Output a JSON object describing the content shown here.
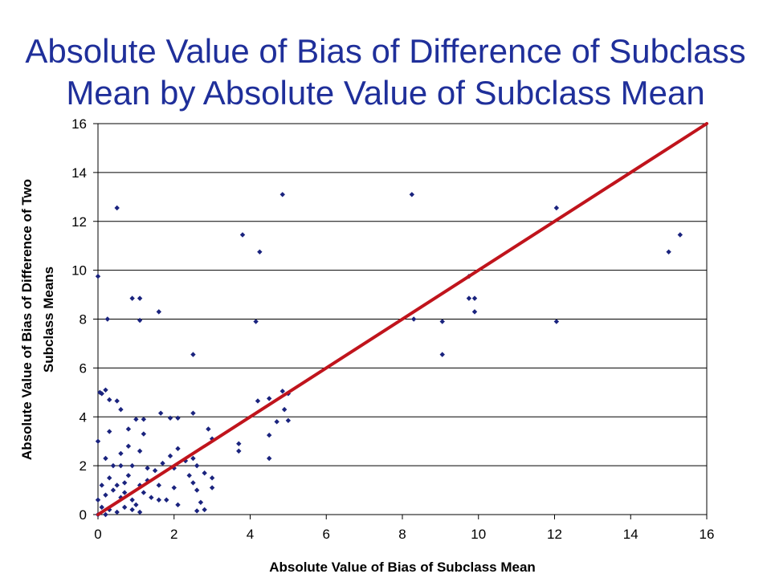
{
  "title": {
    "line1": "Absolute Value of Bias of Difference of Subclass",
    "line2": "Mean by Absolute Value of Subclass Mean"
  },
  "chart_data": {
    "type": "scatter",
    "xlabel": "Absolute Value of Bias of Subclass Mean",
    "ylabel_line1": "Absolute Value of Bias of Difference of Two",
    "ylabel_line2": "Subclass Means",
    "xlim": [
      0,
      16
    ],
    "ylim": [
      0,
      16
    ],
    "xticks": [
      0,
      2,
      4,
      6,
      8,
      10,
      12,
      14,
      16
    ],
    "yticks": [
      0,
      2,
      4,
      6,
      8,
      10,
      12,
      14,
      16
    ],
    "grid": "horizontal",
    "marker_color": "#1a237e",
    "line_color": "#c0141c",
    "reference_line": {
      "x": [
        0,
        16
      ],
      "y": [
        0,
        16
      ]
    },
    "points": [
      [
        0.0,
        9.75
      ],
      [
        0.05,
        5.0
      ],
      [
        0.25,
        8.0
      ],
      [
        0.5,
        12.55
      ],
      [
        0.9,
        8.85
      ],
      [
        1.1,
        8.85
      ],
      [
        1.1,
        7.95
      ],
      [
        1.6,
        8.3
      ],
      [
        2.5,
        6.55
      ],
      [
        0.2,
        5.1
      ],
      [
        0.1,
        4.95
      ],
      [
        0.5,
        4.65
      ],
      [
        0.3,
        4.7
      ],
      [
        0.6,
        4.3
      ],
      [
        1.0,
        3.9
      ],
      [
        1.2,
        3.9
      ],
      [
        1.65,
        4.15
      ],
      [
        1.9,
        3.95
      ],
      [
        2.1,
        3.95
      ],
      [
        2.5,
        4.15
      ],
      [
        0.8,
        3.5
      ],
      [
        1.2,
        3.3
      ],
      [
        0.3,
        3.4
      ],
      [
        0.0,
        3.0
      ],
      [
        1.1,
        2.6
      ],
      [
        0.8,
        2.8
      ],
      [
        0.6,
        2.5
      ],
      [
        0.2,
        2.3
      ],
      [
        0.4,
        2.0
      ],
      [
        0.6,
        2.0
      ],
      [
        0.9,
        2.0
      ],
      [
        1.3,
        1.9
      ],
      [
        1.5,
        1.8
      ],
      [
        1.7,
        2.1
      ],
      [
        1.9,
        2.4
      ],
      [
        2.1,
        2.7
      ],
      [
        2.3,
        2.2
      ],
      [
        2.0,
        1.9
      ],
      [
        2.4,
        1.6
      ],
      [
        1.6,
        1.2
      ],
      [
        1.3,
        1.4
      ],
      [
        1.1,
        1.2
      ],
      [
        0.7,
        1.3
      ],
      [
        0.4,
        1.0
      ],
      [
        0.2,
        0.8
      ],
      [
        0.0,
        0.6
      ],
      [
        0.1,
        0.3
      ],
      [
        0.3,
        0.2
      ],
      [
        0.5,
        0.1
      ],
      [
        0.7,
        0.3
      ],
      [
        0.9,
        0.2
      ],
      [
        1.1,
        0.1
      ],
      [
        0.0,
        0.0
      ],
      [
        0.1,
        1.2
      ],
      [
        0.3,
        1.5
      ],
      [
        0.5,
        1.2
      ],
      [
        0.7,
        0.9
      ],
      [
        0.9,
        0.6
      ],
      [
        1.0,
        0.4
      ],
      [
        0.2,
        0.0
      ],
      [
        2.6,
        1.0
      ],
      [
        2.7,
        0.5
      ],
      [
        2.8,
        0.2
      ],
      [
        2.6,
        0.15
      ],
      [
        2.9,
        3.5
      ],
      [
        3.0,
        3.1
      ],
      [
        3.0,
        1.5
      ],
      [
        3.0,
        1.1
      ],
      [
        2.8,
        1.7
      ],
      [
        2.5,
        1.3
      ],
      [
        2.5,
        2.3
      ],
      [
        1.8,
        0.6
      ],
      [
        2.1,
        0.4
      ],
      [
        2.0,
        1.1
      ],
      [
        1.4,
        0.7
      ],
      [
        1.2,
        0.9
      ],
      [
        0.8,
        1.6
      ],
      [
        0.6,
        0.7
      ],
      [
        1.6,
        0.6
      ],
      [
        2.6,
        2.0
      ],
      [
        3.8,
        11.45
      ],
      [
        4.25,
        10.75
      ],
      [
        4.85,
        13.1
      ],
      [
        4.15,
        7.9
      ],
      [
        3.7,
        2.9
      ],
      [
        3.7,
        2.6
      ],
      [
        4.2,
        4.65
      ],
      [
        4.5,
        4.75
      ],
      [
        4.85,
        5.05
      ],
      [
        4.9,
        4.3
      ],
      [
        5.0,
        4.95
      ],
      [
        4.7,
        3.8
      ],
      [
        5.0,
        3.85
      ],
      [
        4.5,
        3.25
      ],
      [
        4.5,
        2.3
      ],
      [
        8.25,
        13.1
      ],
      [
        8.3,
        8.0
      ],
      [
        9.05,
        7.9
      ],
      [
        9.05,
        6.55
      ],
      [
        9.75,
        9.75
      ],
      [
        9.75,
        8.85
      ],
      [
        9.9,
        8.85
      ],
      [
        9.9,
        8.3
      ],
      [
        12.05,
        12.55
      ],
      [
        12.05,
        7.9
      ],
      [
        15.0,
        10.75
      ],
      [
        15.3,
        11.45
      ]
    ]
  }
}
